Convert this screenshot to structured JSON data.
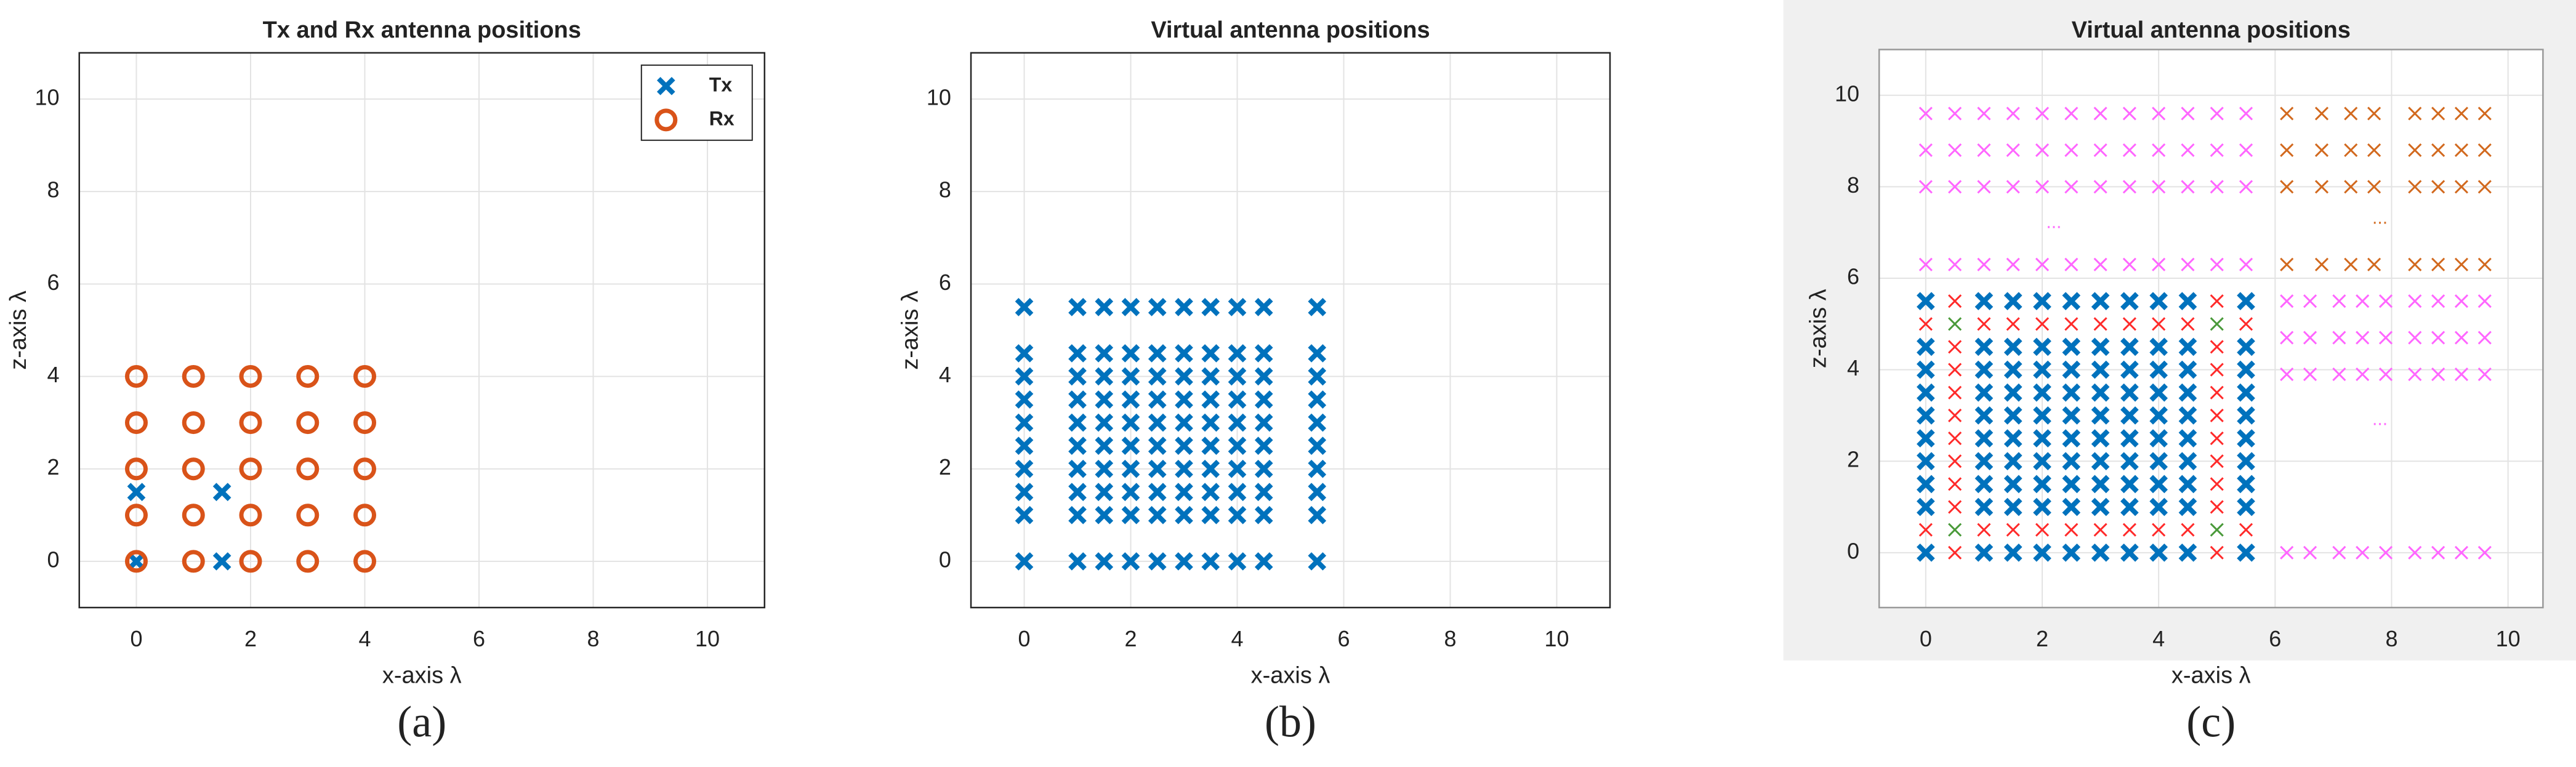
{
  "chart_data": [
    {
      "type": "scatter",
      "title": "Tx and Rx antenna positions",
      "xlabel": "x-axis λ",
      "ylabel": "z-axis λ",
      "panel_label": "(a)",
      "xlim": [
        -1,
        11
      ],
      "ylim": [
        -1,
        11
      ],
      "xticks": [
        0,
        2,
        4,
        6,
        8,
        10
      ],
      "yticks": [
        0,
        2,
        4,
        6,
        8,
        10
      ],
      "grid": true,
      "legend": "northeast",
      "series": [
        {
          "name": "Tx",
          "color": "#0072BD",
          "marker": "x",
          "x": [
            0,
            0,
            1.5,
            1.5
          ],
          "values": [
            0,
            1.5,
            1.5,
            0
          ]
        },
        {
          "name": "Rx",
          "color": "#D95319",
          "marker": "o",
          "x": [
            0,
            1,
            2,
            3,
            4,
            0,
            1,
            2,
            3,
            4,
            0,
            1,
            2,
            3,
            4,
            0,
            1,
            2,
            3,
            4,
            0,
            1,
            2,
            3,
            4
          ],
          "values": [
            0,
            0,
            0,
            0,
            0,
            1,
            1,
            1,
            1,
            1,
            2,
            2,
            2,
            2,
            2,
            3,
            3,
            3,
            3,
            3,
            4,
            4,
            4,
            4,
            4
          ]
        }
      ]
    },
    {
      "type": "scatter",
      "title": "Virtual antenna positions",
      "xlabel": "x-axis λ",
      "ylabel": "z-axis λ",
      "panel_label": "(b)",
      "xlim": [
        -1,
        11
      ],
      "ylim": [
        -1,
        11
      ],
      "xticks": [
        0,
        2,
        4,
        6,
        8,
        10
      ],
      "yticks": [
        0,
        2,
        4,
        6,
        8,
        10
      ],
      "grid": true,
      "series": [
        {
          "color": "#0072BD",
          "marker": "x",
          "x": [
            0,
            1,
            1.5,
            2,
            2.5,
            3,
            3.5,
            4,
            4.5,
            5.5,
            0,
            1,
            1.5,
            2,
            2.5,
            3,
            3.5,
            4,
            4.5,
            5.5,
            0,
            1,
            1.5,
            2,
            2.5,
            3,
            3.5,
            4,
            4.5,
            5.5,
            0,
            1,
            1.5,
            2,
            2.5,
            3,
            3.5,
            4,
            4.5,
            5.5,
            0,
            1,
            1.5,
            2,
            2.5,
            3,
            3.5,
            4,
            4.5,
            5.5,
            0,
            1,
            1.5,
            2,
            2.5,
            3,
            3.5,
            4,
            4.5,
            5.5,
            0,
            1,
            1.5,
            2,
            2.5,
            3,
            3.5,
            4,
            4.5,
            5.5,
            0,
            1,
            1.5,
            2,
            2.5,
            3,
            3.5,
            4,
            4.5,
            5.5,
            0,
            1,
            1.5,
            2,
            2.5,
            3,
            3.5,
            4,
            4.5,
            5.5,
            0,
            1,
            1.5,
            2,
            2.5,
            3,
            3.5,
            4,
            4.5,
            5.5
          ],
          "values": [
            0,
            0,
            0,
            0,
            0,
            0,
            0,
            0,
            0,
            0,
            1,
            1,
            1,
            1,
            1,
            1,
            1,
            1,
            1,
            1,
            1.5,
            1.5,
            1.5,
            1.5,
            1.5,
            1.5,
            1.5,
            1.5,
            1.5,
            1.5,
            2,
            2,
            2,
            2,
            2,
            2,
            2,
            2,
            2,
            2,
            2.5,
            2.5,
            2.5,
            2.5,
            2.5,
            2.5,
            2.5,
            2.5,
            2.5,
            2.5,
            3,
            3,
            3,
            3,
            3,
            3,
            3,
            3,
            3,
            3,
            3.5,
            3.5,
            3.5,
            3.5,
            3.5,
            3.5,
            3.5,
            3.5,
            3.5,
            3.5,
            4,
            4,
            4,
            4,
            4,
            4,
            4,
            4,
            4,
            4,
            4.5,
            4.5,
            4.5,
            4.5,
            4.5,
            4.5,
            4.5,
            4.5,
            4.5,
            4.5,
            5.5,
            5.5,
            5.5,
            5.5,
            5.5,
            5.5,
            5.5,
            5.5,
            5.5,
            5.5
          ]
        }
      ]
    },
    {
      "type": "scatter",
      "title": "Virtual antenna positions",
      "xlabel": "x-axis λ",
      "ylabel": "z-axis λ",
      "panel_label": "(c)",
      "xlim": [
        -0.8,
        10.6
      ],
      "ylim": [
        -1.2,
        11
      ],
      "xticks": [
        0,
        2,
        4,
        6,
        8,
        10
      ],
      "yticks": [
        0,
        2,
        4,
        6,
        8,
        10
      ],
      "grid": true,
      "figure_color": "#f0f0f0",
      "series": [
        {
          "color": "#0072BD",
          "marker": "x",
          "x": [
            0,
            1,
            1.5,
            2,
            2.5,
            3,
            3.5,
            4,
            4.5,
            5.5,
            0,
            1,
            1.5,
            2,
            2.5,
            3,
            3.5,
            4,
            4.5,
            5.5,
            0,
            1,
            1.5,
            2,
            2.5,
            3,
            3.5,
            4,
            4.5,
            5.5,
            0,
            1,
            1.5,
            2,
            2.5,
            3,
            3.5,
            4,
            4.5,
            5.5,
            0,
            1,
            1.5,
            2,
            2.5,
            3,
            3.5,
            4,
            4.5,
            5.5,
            0,
            1,
            1.5,
            2,
            2.5,
            3,
            3.5,
            4,
            4.5,
            5.5,
            0,
            1,
            1.5,
            2,
            2.5,
            3,
            3.5,
            4,
            4.5,
            5.5,
            0,
            1,
            1.5,
            2,
            2.5,
            3,
            3.5,
            4,
            4.5,
            5.5,
            0,
            1,
            1.5,
            2,
            2.5,
            3,
            3.5,
            4,
            4.5,
            5.5,
            0,
            1,
            1.5,
            2,
            2.5,
            3,
            3.5,
            4,
            4.5,
            5.5
          ],
          "values": [
            0,
            0,
            0,
            0,
            0,
            0,
            0,
            0,
            0,
            0,
            1,
            1,
            1,
            1,
            1,
            1,
            1,
            1,
            1,
            1,
            1.5,
            1.5,
            1.5,
            1.5,
            1.5,
            1.5,
            1.5,
            1.5,
            1.5,
            1.5,
            2,
            2,
            2,
            2,
            2,
            2,
            2,
            2,
            2,
            2,
            2.5,
            2.5,
            2.5,
            2.5,
            2.5,
            2.5,
            2.5,
            2.5,
            2.5,
            2.5,
            3,
            3,
            3,
            3,
            3,
            3,
            3,
            3,
            3,
            3,
            3.5,
            3.5,
            3.5,
            3.5,
            3.5,
            3.5,
            3.5,
            3.5,
            3.5,
            3.5,
            4,
            4,
            4,
            4,
            4,
            4,
            4,
            4,
            4,
            4,
            4.5,
            4.5,
            4.5,
            4.5,
            4.5,
            4.5,
            4.5,
            4.5,
            4.5,
            4.5,
            5.5,
            5.5,
            5.5,
            5.5,
            5.5,
            5.5,
            5.5,
            5.5,
            5.5,
            5.5
          ]
        },
        {
          "color": "#ff2a2a",
          "marker": "x-thin",
          "x": [
            0,
            1,
            1.5,
            2,
            2.5,
            3,
            3.5,
            4,
            4.5,
            5.5,
            0,
            1,
            1.5,
            2,
            2.5,
            3,
            3.5,
            4,
            4.5,
            5.5,
            0.5,
            0.5,
            0.5,
            0.5,
            0.5,
            0.5,
            0.5,
            0.5,
            0.5,
            0.5,
            5,
            5,
            5,
            5,
            5,
            5,
            5,
            5,
            5,
            5
          ],
          "values": [
            5,
            5,
            5,
            5,
            5,
            5,
            5,
            5,
            5,
            5,
            0.5,
            0.5,
            0.5,
            0.5,
            0.5,
            0.5,
            0.5,
            0.5,
            0.5,
            0.5,
            0,
            1,
            1.5,
            2,
            2.5,
            3,
            3.5,
            4,
            4.5,
            5.5,
            0,
            1,
            1.5,
            2,
            2.5,
            3,
            3.5,
            4,
            4.5,
            5.5
          ]
        },
        {
          "color": "#4a9a3a",
          "marker": "x-thin",
          "x": [
            0.5,
            5,
            0.5,
            5
          ],
          "values": [
            5,
            5,
            0.5,
            0.5
          ]
        },
        {
          "color": "#ff66ff",
          "marker": "x-thin",
          "x": [
            0,
            0.5,
            1,
            1.5,
            2,
            2.5,
            3,
            3.5,
            4,
            4.5,
            5,
            5.5,
            0,
            0.5,
            1,
            1.5,
            2,
            2.5,
            3,
            3.5,
            4,
            4.5,
            5,
            5.5,
            0,
            0.5,
            1,
            1.5,
            2,
            2.5,
            3,
            3.5,
            4,
            4.5,
            5,
            5.5,
            0,
            0.5,
            1,
            1.5,
            2,
            2.5,
            3,
            3.5,
            4,
            4.5,
            5,
            5.5,
            6.2,
            6.6,
            7.1,
            7.5,
            7.9,
            8.4,
            8.8,
            9.2,
            9.6,
            6.2,
            6.6,
            7.1,
            7.5,
            7.9,
            8.4,
            8.8,
            9.2,
            9.6,
            6.2,
            6.6,
            7.1,
            7.5,
            7.9,
            8.4,
            8.8,
            9.2,
            9.6,
            6.2,
            6.6,
            7.1,
            7.5,
            7.9,
            8.4,
            8.8,
            9.2,
            9.6
          ],
          "values": [
            9.6,
            9.6,
            9.6,
            9.6,
            9.6,
            9.6,
            9.6,
            9.6,
            9.6,
            9.6,
            9.6,
            9.6,
            8.8,
            8.8,
            8.8,
            8.8,
            8.8,
            8.8,
            8.8,
            8.8,
            8.8,
            8.8,
            8.8,
            8.8,
            8,
            8,
            8,
            8,
            8,
            8,
            8,
            8,
            8,
            8,
            8,
            8,
            6.3,
            6.3,
            6.3,
            6.3,
            6.3,
            6.3,
            6.3,
            6.3,
            6.3,
            6.3,
            6.3,
            6.3,
            5.5,
            5.5,
            5.5,
            5.5,
            5.5,
            5.5,
            5.5,
            5.5,
            5.5,
            4.7,
            4.7,
            4.7,
            4.7,
            4.7,
            4.7,
            4.7,
            4.7,
            4.7,
            3.9,
            3.9,
            3.9,
            3.9,
            3.9,
            3.9,
            3.9,
            3.9,
            3.9,
            0,
            0,
            0,
            0,
            0,
            0,
            0,
            0,
            0
          ]
        },
        {
          "color": "#d2691e",
          "marker": "x-thin",
          "x": [
            6.2,
            6.8,
            7.3,
            7.7,
            8.4,
            8.8,
            9.2,
            9.6,
            6.2,
            6.8,
            7.3,
            7.7,
            8.4,
            8.8,
            9.2,
            9.6,
            6.2,
            6.8,
            7.3,
            7.7,
            8.4,
            8.8,
            9.2,
            9.6,
            6.2,
            6.8,
            7.3,
            7.7,
            8.4,
            8.8,
            9.2,
            9.6
          ],
          "values": [
            9.6,
            9.6,
            9.6,
            9.6,
            9.6,
            9.6,
            9.6,
            9.6,
            8.8,
            8.8,
            8.8,
            8.8,
            8.8,
            8.8,
            8.8,
            8.8,
            8,
            8,
            8,
            8,
            8,
            8,
            8,
            8,
            6.3,
            6.3,
            6.3,
            6.3,
            6.3,
            6.3,
            6.3,
            6.3
          ]
        }
      ],
      "annotations": [
        {
          "text": "...",
          "x": 2.2,
          "y": 7.2,
          "color": "#ff66ff"
        },
        {
          "text": "...",
          "x": 7.8,
          "y": 7.3,
          "color": "#d2691e"
        },
        {
          "text": "...",
          "x": 7.8,
          "y": 2.9,
          "color": "#ff66ff"
        }
      ]
    }
  ]
}
